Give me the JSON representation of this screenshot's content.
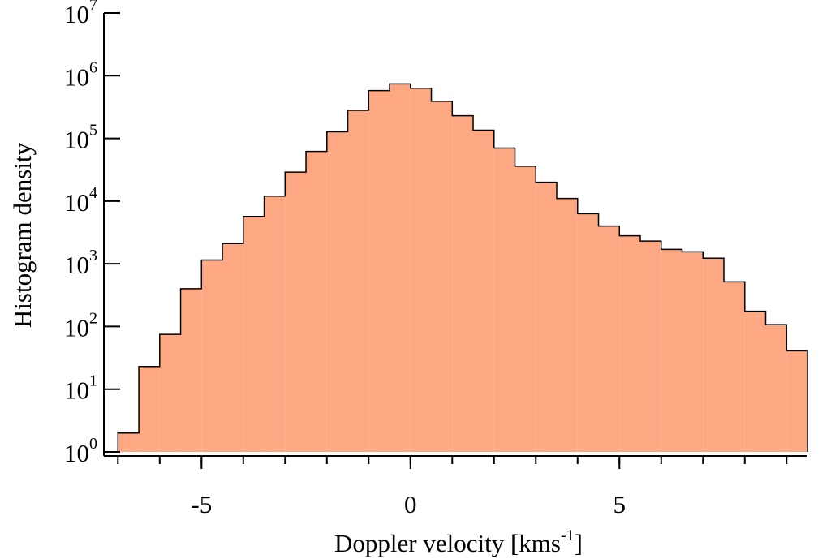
{
  "chart_data": {
    "type": "histogram",
    "x_label": [
      "Doppler velocity  [kms",
      "-1",
      "]"
    ],
    "y_label": "Histogram density",
    "bins": [
      -7,
      -6.5,
      -6,
      -5.5,
      -5,
      -4.5,
      -4,
      -3.5,
      -3,
      -2.5,
      -2,
      -1.5,
      -1,
      -0.5,
      0,
      0.5,
      1,
      1.5,
      2,
      2.5,
      3,
      3.5,
      4,
      4.5,
      5,
      5.5,
      6,
      6.5,
      7,
      7.5,
      8,
      8.5,
      9,
      9.5
    ],
    "values": [
      2,
      23,
      75,
      400,
      1150,
      2100,
      5700,
      12000,
      29000,
      62000,
      127000,
      280000,
      580000,
      740000,
      630000,
      390000,
      230000,
      135000,
      70000,
      36000,
      20000,
      11000,
      6300,
      4000,
      2800,
      2300,
      1700,
      1550,
      1230,
      515,
      175,
      107,
      41
    ],
    "color": "#fda882",
    "edge_color": "#000000",
    "xlim": [
      -7.2,
      9.5
    ],
    "xticks": [
      -5,
      0,
      5
    ],
    "xminor": [
      -7,
      -6,
      -5,
      -4,
      -3,
      -2,
      -1,
      0,
      1,
      2,
      3,
      4,
      5,
      6,
      7,
      8,
      9
    ],
    "ylim": [
      1,
      10000000
    ],
    "log_y": true,
    "yticks": [
      {
        "value": 1,
        "label": "10",
        "exponent": "0"
      },
      {
        "value": 10,
        "label": "10",
        "exponent": "1"
      },
      {
        "value": 100,
        "label": "10",
        "exponent": "2"
      },
      {
        "value": 1000,
        "label": "10",
        "exponent": "3"
      },
      {
        "value": 10000,
        "label": "10",
        "exponent": "4"
      },
      {
        "value": 100000,
        "label": "10",
        "exponent": "5"
      },
      {
        "value": 1000000,
        "label": "10",
        "exponent": "6"
      },
      {
        "value": 10000000,
        "label": "10",
        "exponent": "7"
      }
    ]
  }
}
